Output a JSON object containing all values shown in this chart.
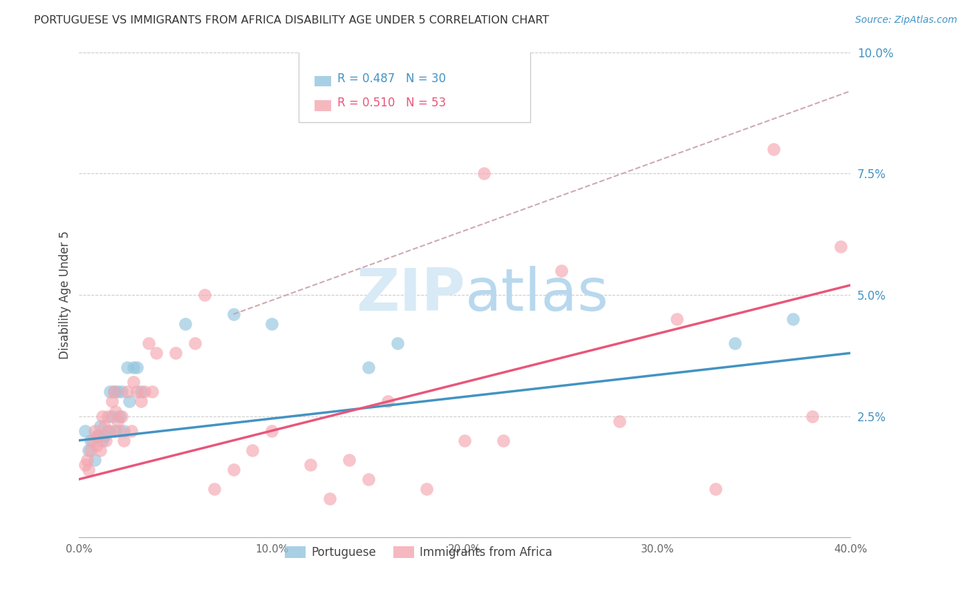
{
  "title": "PORTUGUESE VS IMMIGRANTS FROM AFRICA DISABILITY AGE UNDER 5 CORRELATION CHART",
  "source": "Source: ZipAtlas.com",
  "ylabel": "Disability Age Under 5",
  "xlim": [
    0.0,
    0.4
  ],
  "ylim": [
    0.0,
    0.1
  ],
  "xticks": [
    0.0,
    0.1,
    0.2,
    0.3,
    0.4
  ],
  "xtick_labels": [
    "0.0%",
    "10.0%",
    "20.0%",
    "30.0%",
    "40.0%"
  ],
  "yticks_right": [
    0.025,
    0.05,
    0.075,
    0.1
  ],
  "ytick_labels_right": [
    "2.5%",
    "5.0%",
    "7.5%",
    "10.0%"
  ],
  "color_blue": "#92c5de",
  "color_pink": "#f4a6b0",
  "color_blue_line": "#4393c3",
  "color_pink_line": "#e8567a",
  "color_dashed": "#c8a0a8",
  "background_color": "#ffffff",
  "watermark_color": "#d8eaf5",
  "portuguese_x": [
    0.003,
    0.005,
    0.006,
    0.008,
    0.009,
    0.01,
    0.011,
    0.012,
    0.013,
    0.015,
    0.016,
    0.017,
    0.018,
    0.019,
    0.02,
    0.021,
    0.022,
    0.023,
    0.025,
    0.026,
    0.028,
    0.03,
    0.032,
    0.055,
    0.08,
    0.1,
    0.15,
    0.165,
    0.34,
    0.37
  ],
  "portuguese_y": [
    0.022,
    0.018,
    0.02,
    0.016,
    0.021,
    0.021,
    0.023,
    0.02,
    0.021,
    0.022,
    0.03,
    0.025,
    0.03,
    0.022,
    0.03,
    0.025,
    0.03,
    0.022,
    0.035,
    0.028,
    0.035,
    0.035,
    0.03,
    0.044,
    0.046,
    0.044,
    0.035,
    0.04,
    0.04,
    0.045
  ],
  "africa_x": [
    0.003,
    0.004,
    0.005,
    0.006,
    0.007,
    0.008,
    0.009,
    0.01,
    0.011,
    0.012,
    0.013,
    0.014,
    0.015,
    0.016,
    0.017,
    0.018,
    0.019,
    0.02,
    0.021,
    0.022,
    0.023,
    0.025,
    0.027,
    0.028,
    0.03,
    0.032,
    0.034,
    0.036,
    0.038,
    0.04,
    0.05,
    0.06,
    0.065,
    0.07,
    0.08,
    0.09,
    0.1,
    0.12,
    0.13,
    0.14,
    0.15,
    0.16,
    0.18,
    0.2,
    0.21,
    0.22,
    0.25,
    0.28,
    0.31,
    0.33,
    0.36,
    0.38,
    0.395
  ],
  "africa_y": [
    0.015,
    0.016,
    0.014,
    0.018,
    0.02,
    0.022,
    0.019,
    0.021,
    0.018,
    0.025,
    0.023,
    0.02,
    0.025,
    0.022,
    0.028,
    0.03,
    0.026,
    0.024,
    0.022,
    0.025,
    0.02,
    0.03,
    0.022,
    0.032,
    0.03,
    0.028,
    0.03,
    0.04,
    0.03,
    0.038,
    0.038,
    0.04,
    0.05,
    0.01,
    0.014,
    0.018,
    0.022,
    0.015,
    0.008,
    0.016,
    0.012,
    0.028,
    0.01,
    0.02,
    0.075,
    0.02,
    0.055,
    0.024,
    0.045,
    0.01,
    0.08,
    0.025,
    0.06
  ],
  "blue_line_x0": 0.0,
  "blue_line_y0": 0.02,
  "blue_line_x1": 0.4,
  "blue_line_y1": 0.038,
  "pink_line_x0": 0.0,
  "pink_line_y0": 0.012,
  "pink_line_x1": 0.4,
  "pink_line_y1": 0.052,
  "dash_line_x0": 0.08,
  "dash_line_y0": 0.046,
  "dash_line_x1": 0.4,
  "dash_line_y1": 0.092
}
